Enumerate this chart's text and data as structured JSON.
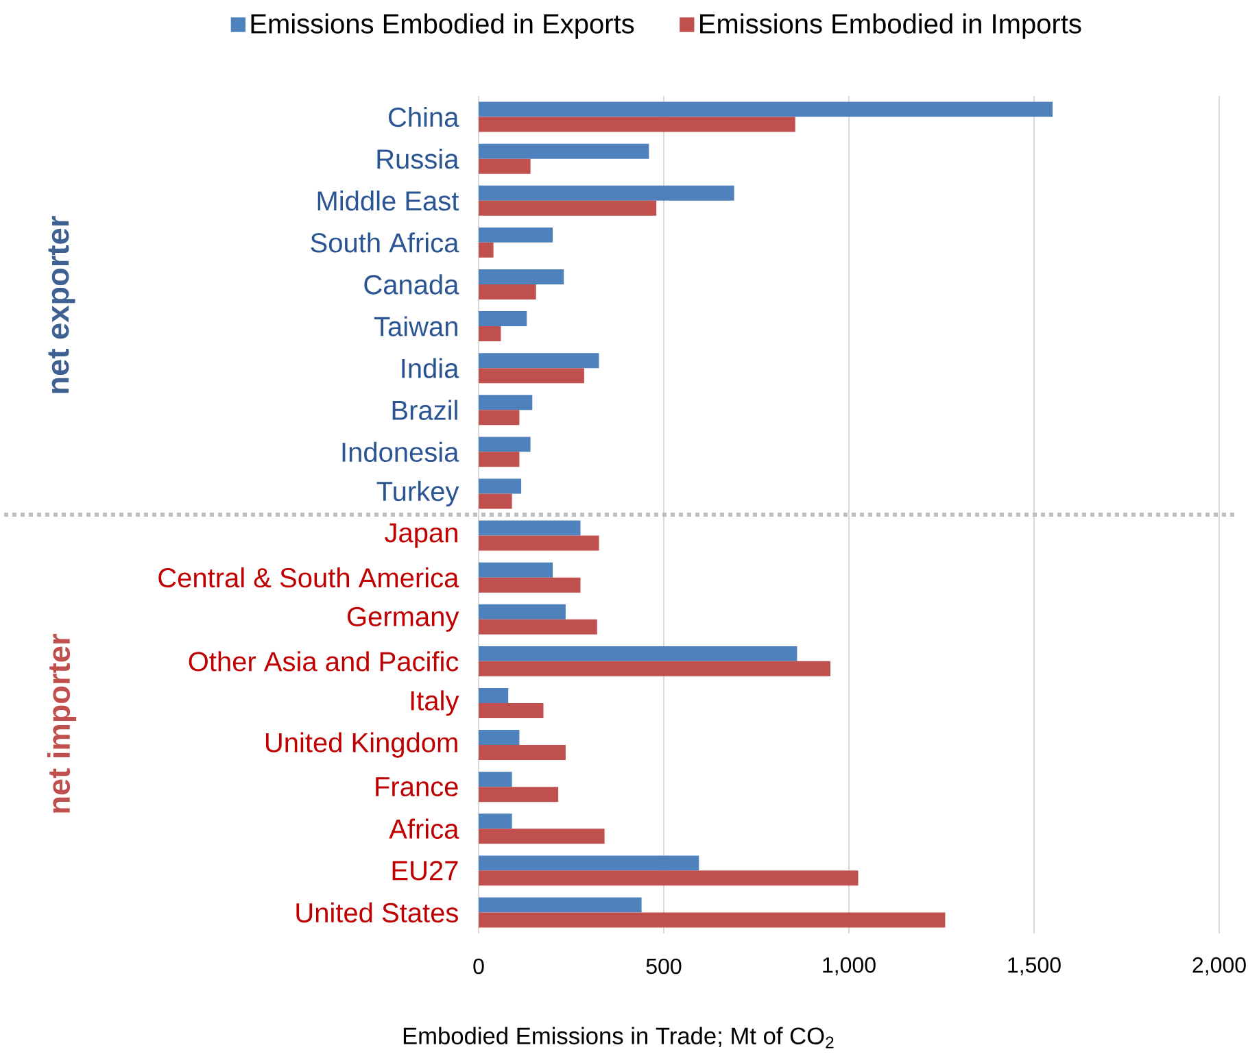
{
  "chart_data": {
    "type": "bar",
    "orientation": "horizontal",
    "categories": [
      "China",
      "Russia",
      "Middle East",
      "South Africa",
      "Canada",
      "Taiwan",
      "India",
      "Brazil",
      "Indonesia",
      "Turkey",
      "Japan",
      "Central & South America",
      "Germany",
      "Other Asia and Pacific",
      "Italy",
      "United Kingdom",
      "France",
      "Africa",
      "EU27",
      "United States"
    ],
    "series": [
      {
        "name": "Emissions Embodied in Exports",
        "color": "#4f81bd",
        "values": [
          1550,
          460,
          690,
          200,
          230,
          130,
          325,
          145,
          140,
          115,
          275,
          200,
          235,
          860,
          80,
          110,
          90,
          90,
          595,
          440
        ]
      },
      {
        "name": "Emissions Embodied in Imports",
        "color": "#c0504d",
        "values": [
          855,
          140,
          480,
          40,
          155,
          60,
          285,
          110,
          110,
          90,
          325,
          275,
          320,
          950,
          175,
          235,
          215,
          340,
          1025,
          1260
        ]
      }
    ],
    "xlabel": "Embodied Emissions in Trade; Mt of CO$_{2}$",
    "xlim": [
      0,
      2000
    ],
    "xticks": [
      0,
      500,
      {
        "value": 1000,
        "label": "1,000"
      },
      {
        "value": 1500,
        "label": "1,500"
      },
      {
        "value": 2000,
        "label": "2,000"
      }
    ],
    "grid": "x",
    "legend": "top",
    "annotations": [
      "net exporter",
      "net importer"
    ]
  }
}
